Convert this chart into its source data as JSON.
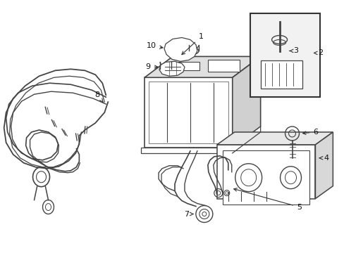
{
  "bg_color": "#ffffff",
  "line_color": "#444444",
  "lw": 1.0,
  "fig_w": 4.89,
  "fig_h": 3.6,
  "dpi": 100
}
